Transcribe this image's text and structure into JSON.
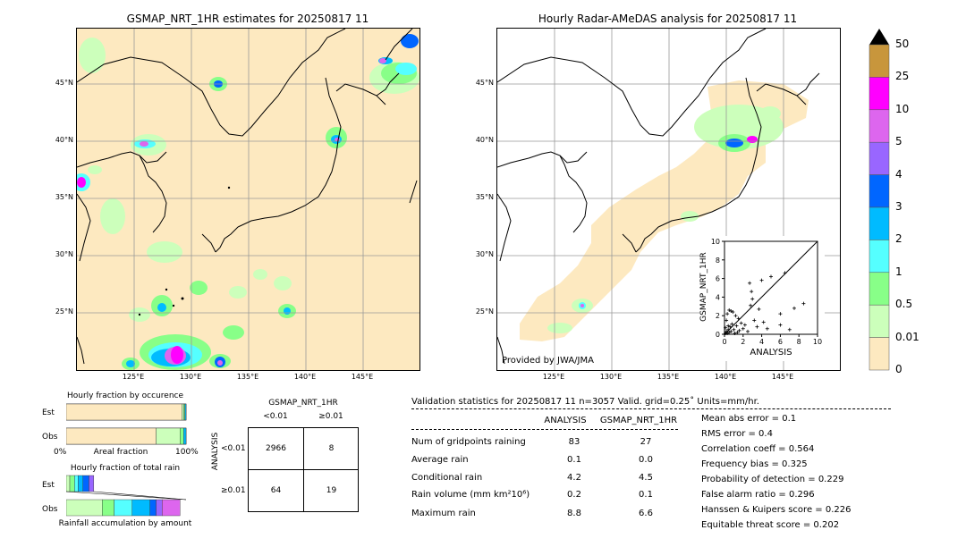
{
  "left_map": {
    "title": "GSMAP_NRT_1HR estimates for 20250817 11",
    "lat_labels": [
      "45°N",
      "40°N",
      "35°N",
      "30°N",
      "25°N"
    ],
    "lon_labels": [
      "125°E",
      "130°E",
      "135°E",
      "140°E",
      "145°E"
    ]
  },
  "right_map": {
    "title": "Hourly Radar-AMeDAS analysis for 20250817 11",
    "lat_labels": [
      "45°N",
      "40°N",
      "35°N",
      "30°N",
      "25°N"
    ],
    "lon_labels": [
      "125°E",
      "130°E",
      "135°E",
      "140°E",
      "145°E"
    ],
    "credit": "Provided by JWA/JMA"
  },
  "colorbar": {
    "labels": [
      "50",
      "25",
      "10",
      "5",
      "4",
      "3",
      "2",
      "1",
      "0.5",
      "0.01",
      "0"
    ],
    "colors": [
      "#c8963c",
      "#ff00ff",
      "#dd66ee",
      "#9966ff",
      "#0066ff",
      "#00bbff",
      "#55ffff",
      "#88ff88",
      "#ccffbb",
      "#fde9c0"
    ]
  },
  "chart_data": {
    "type": "scatter",
    "xlabel": "ANALYSIS",
    "ylabel": "GSMAP_NRT_1HR",
    "xlim": [
      0,
      10
    ],
    "ylim": [
      0,
      10
    ],
    "x_ticks": [
      "0",
      "2",
      "4",
      "6",
      "8",
      "10"
    ],
    "y_ticks": [
      "0",
      "2",
      "4",
      "6",
      "8",
      "10"
    ],
    "points": [
      [
        0.1,
        0.1
      ],
      [
        0.2,
        0.3
      ],
      [
        0.3,
        0.1
      ],
      [
        0.4,
        0.5
      ],
      [
        0.5,
        0.2
      ],
      [
        0.6,
        0.8
      ],
      [
        0.7,
        0.3
      ],
      [
        0.8,
        1.1
      ],
      [
        0.2,
        1.5
      ],
      [
        0.3,
        2.2
      ],
      [
        0.5,
        2.6
      ],
      [
        0.7,
        2.5
      ],
      [
        0.9,
        2.4
      ],
      [
        1.2,
        2.0
      ],
      [
        1.5,
        1.7
      ],
      [
        0.4,
        0.9
      ],
      [
        1.0,
        0.5
      ],
      [
        1.3,
        0.9
      ],
      [
        1.6,
        0.4
      ],
      [
        1.8,
        1.2
      ],
      [
        2.0,
        0.6
      ],
      [
        2.2,
        1.0
      ],
      [
        2.5,
        0.3
      ],
      [
        2.8,
        3.1
      ],
      [
        3.0,
        3.8
      ],
      [
        3.2,
        1.5
      ],
      [
        2.9,
        4.6
      ],
      [
        3.7,
        2.7
      ],
      [
        4.0,
        5.8
      ],
      [
        4.2,
        1.3
      ],
      [
        4.6,
        0.6
      ],
      [
        5.0,
        6.2
      ],
      [
        2.7,
        5.5
      ],
      [
        3.5,
        0.8
      ],
      [
        6.0,
        2.2
      ],
      [
        6.5,
        6.6
      ],
      [
        7.5,
        2.8
      ],
      [
        8.5,
        3.3
      ],
      [
        6.0,
        1.0
      ],
      [
        7.0,
        0.5
      ],
      [
        1.1,
        0.1
      ],
      [
        1.4,
        0.2
      ],
      [
        0.1,
        0.7
      ]
    ]
  },
  "fraction_occurrence": {
    "title": "Hourly fraction by occurence",
    "row_est": "Est",
    "row_obs": "Obs",
    "axis_left": "0%",
    "axis_mid": "Areal fraction",
    "axis_right": "100%",
    "est_segments": [
      0.965,
      0.015,
      0.01,
      0.01
    ],
    "obs_segments": [
      0.75,
      0.2,
      0.03,
      0.02
    ]
  },
  "fraction_rain": {
    "title": "Hourly fraction of total rain",
    "row_est": "Est",
    "row_obs": "Obs",
    "footer": "Rainfall accumulation by amount",
    "est_segments": [
      0.03,
      0.04,
      0.03,
      0.04,
      0.05,
      0.04
    ],
    "obs_segments": [
      0.3,
      0.1,
      0.15,
      0.15,
      0.05,
      0.05,
      0.15
    ]
  },
  "contingency": {
    "col_title": "GSMAP_NRT_1HR",
    "col_lt": "<0.01",
    "col_ge": "≥0.01",
    "row_title": "ANALYSIS",
    "row_lt": "<0.01",
    "row_ge": "≥0.01",
    "cells": [
      "2966",
      "8",
      "64",
      "19"
    ]
  },
  "validation": {
    "header": "Validation statistics for 20250817 11  n=3057 Valid. grid=0.25˚ Units=mm/hr.",
    "col_analysis": "ANALYSIS",
    "col_gsmap": "GSMAP_NRT_1HR",
    "rows": [
      {
        "label": "Num of gridpoints raining",
        "analysis": "83",
        "gsmap": "27"
      },
      {
        "label": "Average rain",
        "analysis": "0.1",
        "gsmap": "0.0"
      },
      {
        "label": "Conditional rain",
        "analysis": "4.2",
        "gsmap": "4.5"
      },
      {
        "label": "Rain volume (mm km²10⁶)",
        "analysis": "0.2",
        "gsmap": "0.1"
      },
      {
        "label": "Maximum rain",
        "analysis": "8.8",
        "gsmap": "6.6"
      }
    ],
    "scores": [
      "Mean abs error =    0.1",
      "RMS error =    0.4",
      "Correlation coeff =  0.564",
      "Frequency bias =  0.325",
      "Probability of detection =  0.229",
      "False alarm ratio =  0.296",
      "Hanssen & Kuipers score =  0.226",
      "Equitable threat score =  0.202"
    ]
  }
}
